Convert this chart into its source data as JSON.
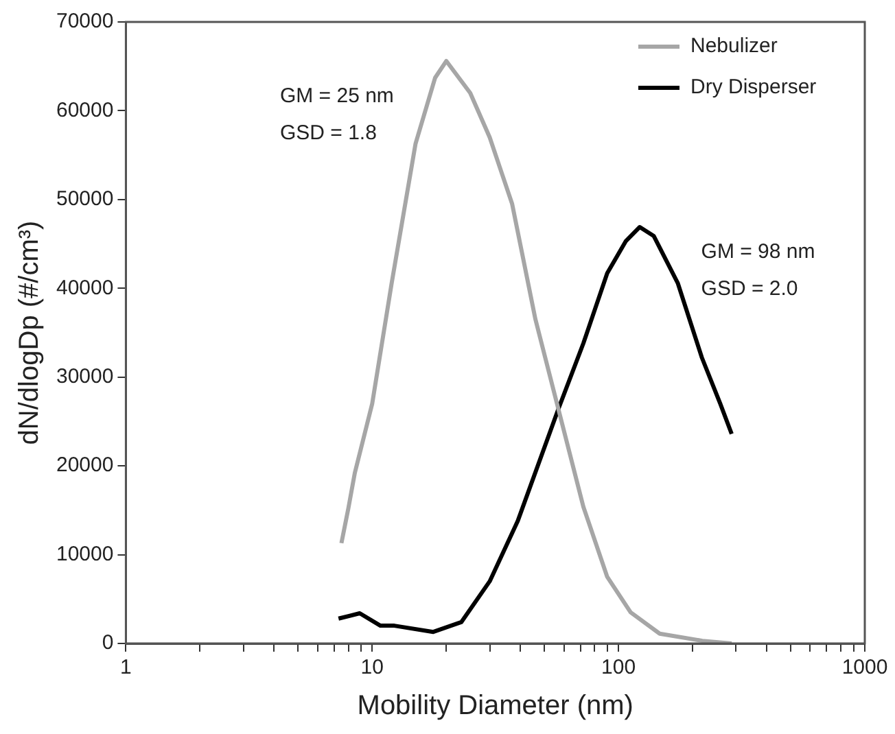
{
  "chart_data": {
    "type": "line",
    "xlabel": "Mobility Diameter (nm)",
    "ylabel": "dN/dlogDp (#/cm³)",
    "log": "x",
    "grid": false,
    "legend": "top right",
    "marker": "none",
    "line_style": "solid",
    "xlim": [
      1,
      1000
    ],
    "ylim": [
      0,
      70000
    ],
    "xticks": [
      1,
      {
        "value": 2,
        "label": null
      },
      {
        "value": 3,
        "label": null
      },
      {
        "value": 4,
        "label": null
      },
      {
        "value": 5,
        "label": null
      },
      {
        "value": 6,
        "label": null
      },
      {
        "value": 7,
        "label": null
      },
      {
        "value": 8,
        "label": null
      },
      {
        "value": 9,
        "label": null
      },
      10,
      {
        "value": 20,
        "label": null
      },
      {
        "value": 30,
        "label": null
      },
      {
        "value": 40,
        "label": null
      },
      {
        "value": 50,
        "label": null
      },
      {
        "value": 60,
        "label": null
      },
      {
        "value": 70,
        "label": null
      },
      {
        "value": 80,
        "label": null
      },
      {
        "value": 90,
        "label": null
      },
      100,
      {
        "value": 200,
        "label": null
      },
      {
        "value": 300,
        "label": null
      },
      {
        "value": 400,
        "label": null
      },
      {
        "value": 500,
        "label": null
      },
      {
        "value": 600,
        "label": null
      },
      {
        "value": 700,
        "label": null
      },
      {
        "value": 800,
        "label": null
      },
      {
        "value": 900,
        "label": null
      },
      1000
    ],
    "yticks": [
      0,
      10000,
      20000,
      30000,
      40000,
      50000,
      60000,
      70000
    ],
    "annotations": [
      "GM = 25 nm",
      "GSD = 1.8",
      "GM = 98 nm",
      "GSD = 2.0"
    ],
    "series": [
      {
        "name": "Nebulizer",
        "color": "#a6a6a6",
        "x": [
          7.5,
          8,
          8.5,
          10,
          12,
          15,
          18,
          20,
          25,
          30,
          37,
          46,
          57,
          72,
          90,
          112,
          147,
          219,
          288
        ],
        "values": [
          11300,
          15200,
          19200,
          27000,
          40600,
          56300,
          63700,
          65600,
          62000,
          57000,
          49500,
          36500,
          26400,
          15400,
          7500,
          3500,
          1100,
          300,
          0
        ]
      },
      {
        "name": "Dry Disperser",
        "color": "#000000",
        "x": [
          7.3,
          8.9,
          10.8,
          12.3,
          17.7,
          23,
          30,
          39,
          57,
          72,
          90,
          107,
          122,
          139,
          174,
          218,
          259,
          288
        ],
        "values": [
          2800,
          3400,
          2000,
          2000,
          1300,
          2400,
          7000,
          13800,
          26400,
          33800,
          41700,
          45300,
          46900,
          45900,
          40600,
          32200,
          27000,
          23600
        ]
      }
    ]
  }
}
